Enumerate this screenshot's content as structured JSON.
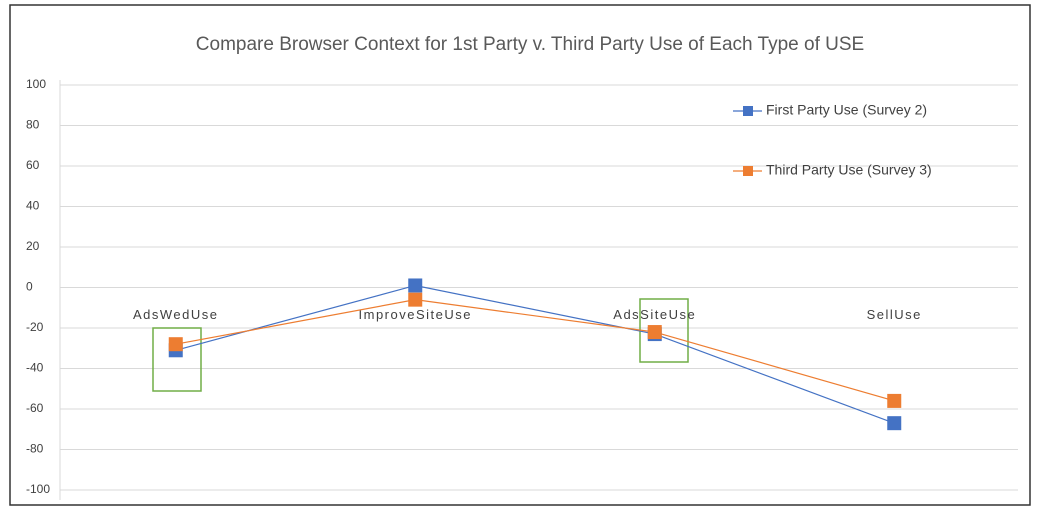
{
  "chart_data": {
    "type": "line",
    "title": "Compare Browser Context for 1st Party v. Third Party Use of Each Type of USE",
    "categories": [
      "AdsWedUse",
      "ImproveSiteUse",
      "AdsSiteUse",
      "SellUse"
    ],
    "series": [
      {
        "name": "First Party Use (Survey 2)",
        "color": "#4472c4",
        "values": [
          -31,
          1,
          -23,
          -67
        ]
      },
      {
        "name": "Third Party Use (Survey 3)",
        "color": "#ed7d31",
        "values": [
          -28,
          -6,
          -22,
          -56
        ]
      }
    ],
    "ylim": [
      -100,
      100
    ],
    "yticks": [
      -100,
      -80,
      -60,
      -40,
      -20,
      0,
      20,
      40,
      60,
      80,
      100
    ],
    "grid": true,
    "legend": "top-right"
  }
}
